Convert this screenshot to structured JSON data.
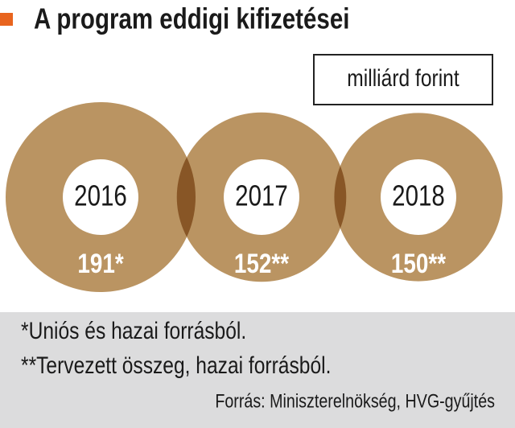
{
  "chart_data": {
    "type": "bubble",
    "title": "A program eddigi kifizetései",
    "unit": "milliárd forint",
    "categories": [
      "2016",
      "2017",
      "2018"
    ],
    "values": [
      191,
      152,
      150
    ],
    "value_labels": [
      "191*",
      "152**",
      "150**"
    ],
    "color": "#ba9462",
    "footnotes": [
      "*Uniós és hazai forrásból.",
      "**Tervezett összeg, hazai forrásból."
    ],
    "source": "Forrás: Miniszterelnökség, HVG-gyűjtés"
  }
}
